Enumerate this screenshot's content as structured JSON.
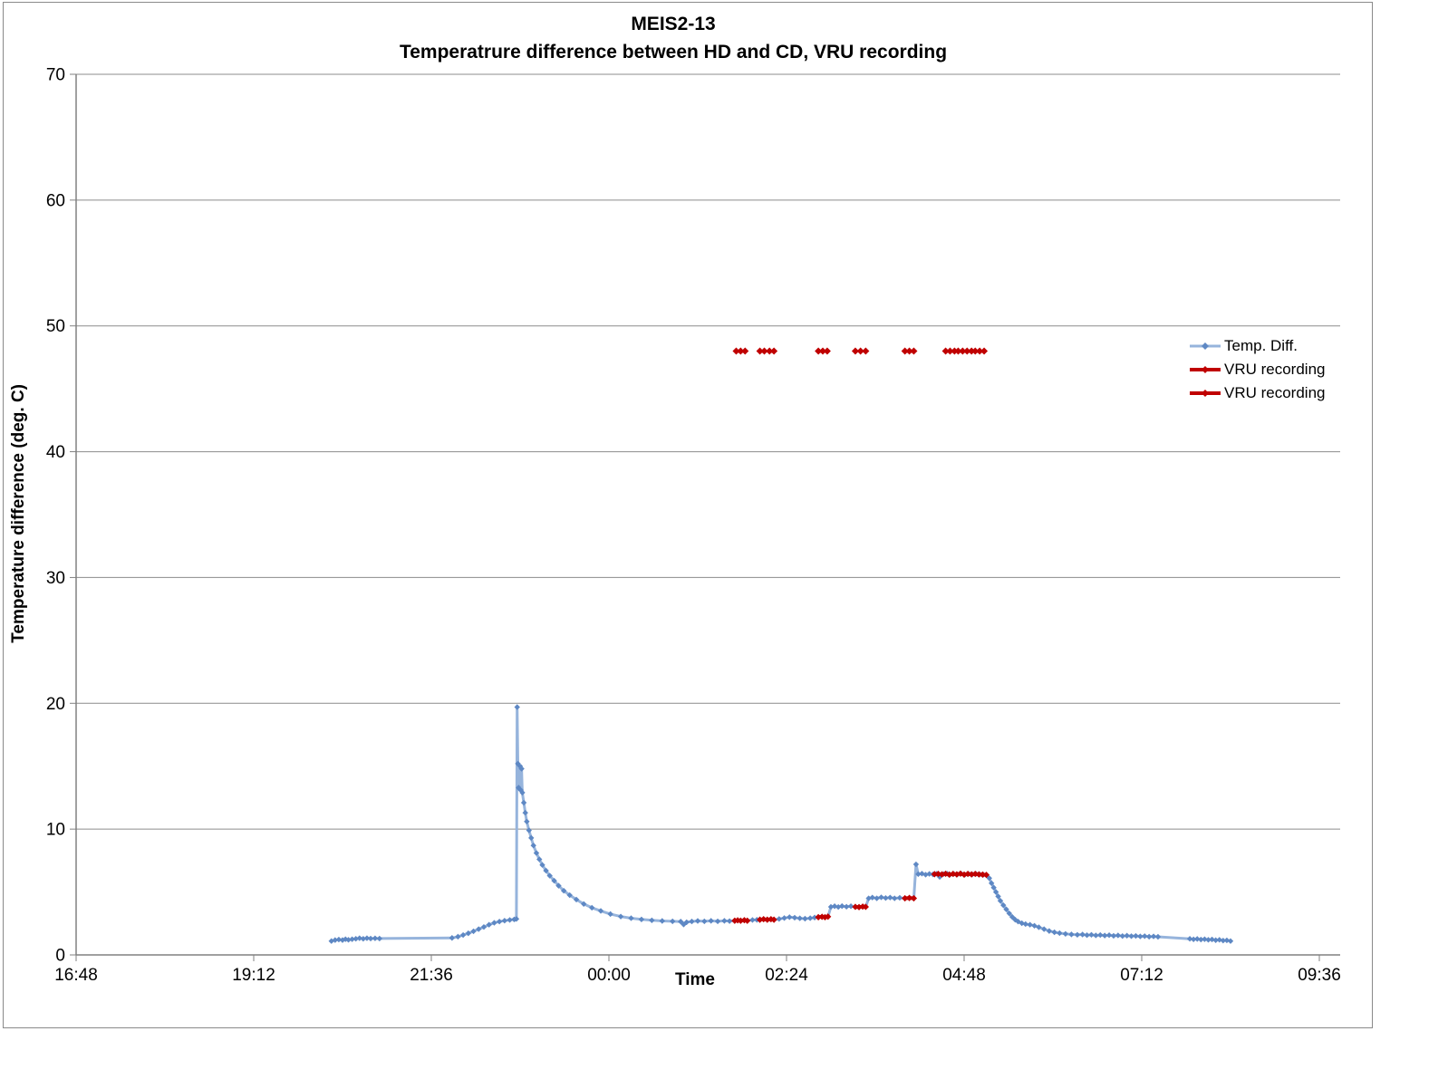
{
  "chart_data": {
    "type": "line",
    "title_line1": "MEIS2-13",
    "title_line2": "Temperatrure difference between HD and CD, VRU recording",
    "xlabel": "Time",
    "ylabel": "Temperature difference (deg. C)",
    "x_ticks": [
      "16:48",
      "19:12",
      "21:36",
      "00:00",
      "02:24",
      "04:48",
      "07:12",
      "09:36"
    ],
    "y_ticks": [
      0,
      10,
      20,
      30,
      40,
      50,
      60,
      70
    ],
    "time_unit": "decimal hours; values >= 24 are after midnight",
    "x_range_hours": [
      16.8,
      33.6
    ],
    "ylim": [
      0,
      70
    ],
    "grid": "horizontal",
    "legend_position": "right",
    "legend": [
      {
        "label": "Temp. Diff.",
        "color": "#96B4DC",
        "marker_color": "#5E88C4"
      },
      {
        "label": "VRU recording",
        "color": "#C00000",
        "marker_color": "#C00000"
      },
      {
        "label": "VRU recording",
        "color": "#C00000",
        "marker_color": "#C00000"
      }
    ],
    "colors": {
      "line": "#96B4DC",
      "marker": "#5E88C4",
      "vru": "#C00000",
      "grid": "#8c8c8c",
      "axis": "#808080",
      "border": "#8a8a8a",
      "text": "#000000"
    },
    "series": {
      "temp_diff": {
        "name": "Temp. Diff.",
        "points": [
          [
            20.25,
            1.1
          ],
          [
            20.3,
            1.18
          ],
          [
            20.35,
            1.22
          ],
          [
            20.4,
            1.18
          ],
          [
            20.44,
            1.25
          ],
          [
            20.48,
            1.2
          ],
          [
            20.53,
            1.25
          ],
          [
            20.58,
            1.28
          ],
          [
            20.63,
            1.33
          ],
          [
            20.68,
            1.28
          ],
          [
            20.73,
            1.33
          ],
          [
            20.78,
            1.3
          ],
          [
            20.84,
            1.32
          ],
          [
            20.9,
            1.3
          ],
          [
            21.88,
            1.35
          ],
          [
            21.96,
            1.45
          ],
          [
            22.03,
            1.58
          ],
          [
            22.1,
            1.72
          ],
          [
            22.17,
            1.88
          ],
          [
            22.24,
            2.05
          ],
          [
            22.31,
            2.22
          ],
          [
            22.38,
            2.4
          ],
          [
            22.45,
            2.55
          ],
          [
            22.52,
            2.65
          ],
          [
            22.59,
            2.72
          ],
          [
            22.66,
            2.78
          ],
          [
            22.72,
            2.82
          ],
          [
            22.75,
            2.86
          ],
          [
            22.76,
            19.7
          ],
          [
            22.77,
            15.2
          ],
          [
            22.78,
            13.3
          ],
          [
            22.785,
            15.1
          ],
          [
            22.79,
            13.2
          ],
          [
            22.8,
            15.0
          ],
          [
            22.81,
            13.1
          ],
          [
            22.82,
            14.8
          ],
          [
            22.83,
            12.9
          ],
          [
            22.85,
            12.1
          ],
          [
            22.87,
            11.3
          ],
          [
            22.89,
            10.6
          ],
          [
            22.92,
            9.9
          ],
          [
            22.95,
            9.3
          ],
          [
            22.98,
            8.7
          ],
          [
            23.02,
            8.1
          ],
          [
            23.06,
            7.6
          ],
          [
            23.1,
            7.15
          ],
          [
            23.15,
            6.7
          ],
          [
            23.2,
            6.3
          ],
          [
            23.26,
            5.9
          ],
          [
            23.32,
            5.5
          ],
          [
            23.39,
            5.1
          ],
          [
            23.47,
            4.75
          ],
          [
            23.56,
            4.4
          ],
          [
            23.66,
            4.05
          ],
          [
            23.77,
            3.75
          ],
          [
            23.89,
            3.5
          ],
          [
            24.02,
            3.25
          ],
          [
            24.16,
            3.05
          ],
          [
            24.3,
            2.92
          ],
          [
            24.44,
            2.82
          ],
          [
            24.58,
            2.75
          ],
          [
            24.72,
            2.7
          ],
          [
            24.86,
            2.67
          ],
          [
            24.97,
            2.65
          ],
          [
            25.01,
            2.42
          ],
          [
            25.05,
            2.6
          ],
          [
            25.12,
            2.66
          ],
          [
            25.2,
            2.7
          ],
          [
            25.29,
            2.67
          ],
          [
            25.38,
            2.71
          ],
          [
            25.47,
            2.67
          ],
          [
            25.56,
            2.71
          ],
          [
            25.63,
            2.69
          ],
          [
            25.7,
            2.72
          ],
          [
            25.74,
            2.75
          ],
          [
            25.78,
            2.72
          ],
          [
            25.83,
            2.76
          ],
          [
            25.87,
            2.72
          ],
          [
            25.94,
            2.78
          ],
          [
            26.0,
            2.79
          ],
          [
            26.04,
            2.8
          ],
          [
            26.09,
            2.84
          ],
          [
            26.14,
            2.8
          ],
          [
            26.19,
            2.84
          ],
          [
            26.23,
            2.8
          ],
          [
            26.3,
            2.86
          ],
          [
            26.37,
            2.93
          ],
          [
            26.44,
            3.0
          ],
          [
            26.51,
            2.96
          ],
          [
            26.58,
            2.91
          ],
          [
            26.65,
            2.88
          ],
          [
            26.72,
            2.92
          ],
          [
            26.78,
            2.97
          ],
          [
            26.83,
            3.0
          ],
          [
            26.88,
            3.03
          ],
          [
            26.92,
            3.0
          ],
          [
            26.96,
            3.04
          ],
          [
            27.0,
            3.82
          ],
          [
            27.05,
            3.87
          ],
          [
            27.1,
            3.81
          ],
          [
            27.15,
            3.88
          ],
          [
            27.21,
            3.83
          ],
          [
            27.27,
            3.87
          ],
          [
            27.33,
            3.82
          ],
          [
            27.38,
            3.8
          ],
          [
            27.43,
            3.84
          ],
          [
            27.47,
            3.82
          ],
          [
            27.51,
            4.5
          ],
          [
            27.56,
            4.56
          ],
          [
            27.62,
            4.5
          ],
          [
            27.68,
            4.58
          ],
          [
            27.74,
            4.52
          ],
          [
            27.8,
            4.56
          ],
          [
            27.86,
            4.5
          ],
          [
            27.93,
            4.54
          ],
          [
            28.0,
            4.5
          ],
          [
            28.06,
            4.53
          ],
          [
            28.12,
            4.5
          ],
          [
            28.15,
            7.2
          ],
          [
            28.18,
            6.42
          ],
          [
            28.23,
            6.46
          ],
          [
            28.28,
            6.38
          ],
          [
            28.33,
            6.44
          ],
          [
            28.38,
            6.4
          ],
          [
            28.43,
            6.45
          ],
          [
            28.47,
            6.2
          ],
          [
            28.52,
            6.42
          ],
          [
            28.57,
            6.46
          ],
          [
            28.61,
            6.38
          ],
          [
            28.66,
            6.44
          ],
          [
            28.71,
            6.4
          ],
          [
            28.76,
            6.46
          ],
          [
            28.81,
            6.38
          ],
          [
            28.86,
            6.44
          ],
          [
            28.91,
            6.4
          ],
          [
            28.96,
            6.44
          ],
          [
            29.01,
            6.4
          ],
          [
            29.06,
            6.38
          ],
          [
            29.1,
            6.35
          ],
          [
            29.14,
            6.1
          ],
          [
            29.17,
            5.7
          ],
          [
            29.2,
            5.35
          ],
          [
            29.23,
            5.0
          ],
          [
            29.26,
            4.65
          ],
          [
            29.29,
            4.3
          ],
          [
            29.33,
            3.95
          ],
          [
            29.37,
            3.62
          ],
          [
            29.41,
            3.3
          ],
          [
            29.45,
            3.02
          ],
          [
            29.49,
            2.8
          ],
          [
            29.53,
            2.65
          ],
          [
            29.58,
            2.52
          ],
          [
            29.63,
            2.45
          ],
          [
            29.69,
            2.4
          ],
          [
            29.75,
            2.32
          ],
          [
            29.81,
            2.2
          ],
          [
            29.88,
            2.05
          ],
          [
            29.95,
            1.9
          ],
          [
            30.02,
            1.8
          ],
          [
            30.09,
            1.73
          ],
          [
            30.17,
            1.67
          ],
          [
            30.25,
            1.63
          ],
          [
            30.33,
            1.6
          ],
          [
            30.4,
            1.62
          ],
          [
            30.46,
            1.57
          ],
          [
            30.52,
            1.6
          ],
          [
            30.58,
            1.55
          ],
          [
            30.64,
            1.58
          ],
          [
            30.7,
            1.54
          ],
          [
            30.76,
            1.57
          ],
          [
            30.82,
            1.52
          ],
          [
            30.88,
            1.55
          ],
          [
            30.94,
            1.5
          ],
          [
            31.0,
            1.53
          ],
          [
            31.06,
            1.49
          ],
          [
            31.12,
            1.51
          ],
          [
            31.18,
            1.47
          ],
          [
            31.24,
            1.49
          ],
          [
            31.3,
            1.45
          ],
          [
            31.36,
            1.47
          ],
          [
            31.42,
            1.44
          ],
          [
            31.85,
            1.28
          ],
          [
            31.9,
            1.24
          ],
          [
            31.95,
            1.27
          ],
          [
            32.0,
            1.22
          ],
          [
            32.05,
            1.25
          ],
          [
            32.1,
            1.2
          ],
          [
            32.15,
            1.23
          ],
          [
            32.2,
            1.17
          ],
          [
            32.25,
            1.2
          ],
          [
            32.3,
            1.14
          ],
          [
            32.35,
            1.16
          ],
          [
            32.4,
            1.1
          ]
        ]
      },
      "vru_line_segments": [
        [
          [
            25.7,
            2.72
          ],
          [
            25.74,
            2.75
          ],
          [
            25.78,
            2.72
          ],
          [
            25.83,
            2.76
          ],
          [
            25.87,
            2.72
          ]
        ],
        [
          [
            26.04,
            2.8
          ],
          [
            26.09,
            2.84
          ],
          [
            26.14,
            2.8
          ],
          [
            26.19,
            2.84
          ],
          [
            26.23,
            2.8
          ]
        ],
        [
          [
            26.83,
            3.0
          ],
          [
            26.88,
            3.03
          ],
          [
            26.92,
            3.0
          ],
          [
            26.96,
            3.04
          ]
        ],
        [
          [
            27.33,
            3.82
          ],
          [
            27.38,
            3.8
          ],
          [
            27.43,
            3.84
          ],
          [
            27.47,
            3.82
          ]
        ],
        [
          [
            28.0,
            4.5
          ],
          [
            28.06,
            4.53
          ],
          [
            28.12,
            4.5
          ]
        ],
        [
          [
            28.4,
            6.42
          ],
          [
            28.45,
            6.44
          ],
          [
            28.5,
            6.4
          ],
          [
            28.55,
            6.45
          ],
          [
            28.6,
            6.38
          ],
          [
            28.65,
            6.44
          ],
          [
            28.7,
            6.4
          ],
          [
            28.75,
            6.46
          ],
          [
            28.8,
            6.38
          ],
          [
            28.85,
            6.44
          ],
          [
            28.9,
            6.4
          ],
          [
            28.95,
            6.44
          ],
          [
            29.0,
            6.4
          ],
          [
            29.05,
            6.38
          ],
          [
            29.1,
            6.36
          ]
        ]
      ],
      "vru_top_markers": {
        "value": 48,
        "times": [
          25.72,
          25.78,
          25.84,
          26.04,
          26.1,
          26.17,
          26.23,
          26.83,
          26.89,
          26.95,
          27.33,
          27.4,
          27.47,
          28.0,
          28.06,
          28.12,
          28.55,
          28.61,
          28.67,
          28.72,
          28.78,
          28.84,
          28.9,
          28.95,
          29.01,
          29.07
        ]
      }
    }
  }
}
